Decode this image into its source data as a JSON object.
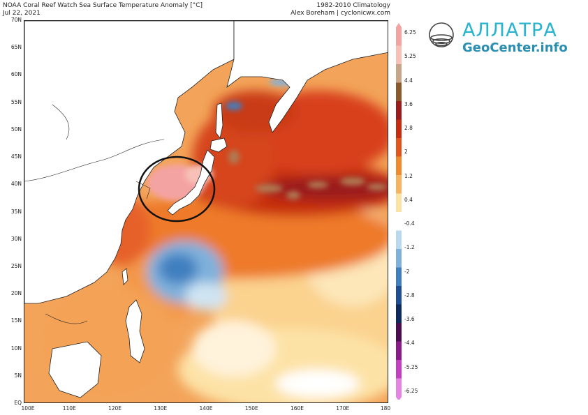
{
  "header": {
    "title": "NOAA Coral Reef Watch Sea Surface Temperature Anomaly [°C]",
    "date": "Jul 22, 2021",
    "climatology": "1982-2010 Climatology",
    "credit": "Alex Boreham | cyclonicwx.com"
  },
  "logo": {
    "brand": "АЛЛАТРА",
    "site": "GeoCenter.info",
    "icon": "allatra-ellipses-icon"
  },
  "map": {
    "lat_ticks": [
      "70N",
      "65N",
      "60N",
      "55N",
      "50N",
      "45N",
      "40N",
      "35N",
      "30N",
      "25N",
      "20N",
      "15N",
      "10N",
      "5N",
      "EQ"
    ],
    "lon_ticks": [
      "100E",
      "110E",
      "120E",
      "130E",
      "140E",
      "150E",
      "160E",
      "170E",
      "180"
    ],
    "extent": {
      "lon": [
        100,
        180
      ],
      "lat": [
        0,
        70
      ]
    },
    "highlight": {
      "shape": "ellipse",
      "center_lon": 134,
      "center_lat": 38.5,
      "color": "#111111"
    }
  },
  "colorbar": {
    "labels": [
      "6.25",
      "5.25",
      "4.4",
      "3.6",
      "2.8",
      "2",
      "1.2",
      "0.4",
      "-0.4",
      "-1.2",
      "-2",
      "-2.8",
      "-3.6",
      "-4.4",
      "-5.25",
      "-6.25"
    ],
    "colors": [
      "#f4a3a3",
      "#f8c1b8",
      "#c8a488",
      "#8b5a2b",
      "#9b1c1c",
      "#c62d0f",
      "#e2551d",
      "#f08a2c",
      "#f7b35f",
      "#fde2a6",
      "#ffffff",
      "#b9d9ef",
      "#7fb1dc",
      "#3f7fc0",
      "#1d4e93",
      "#0c2a5e",
      "#4b0d4d",
      "#8a1a8a",
      "#c23fc2",
      "#e484e4"
    ]
  }
}
